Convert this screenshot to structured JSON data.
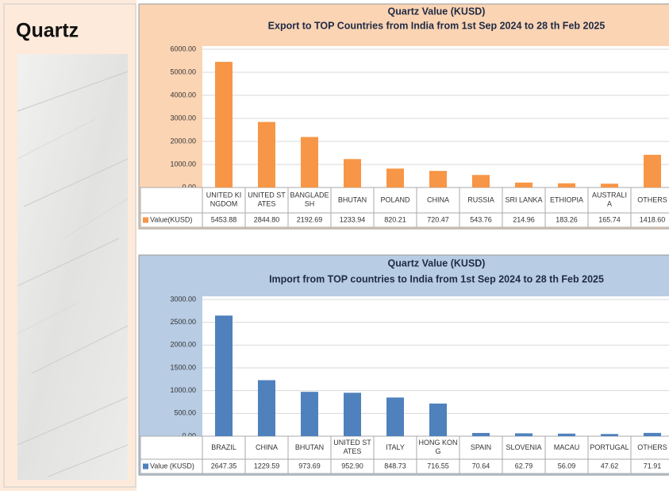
{
  "header": {
    "title": "Quartz"
  },
  "chart_data": [
    {
      "type": "bar",
      "title": "Quartz Value (KUSD)",
      "subtitle": "Export to TOP Countries from India from 1st Sep 2024 to 28 th Feb 2025",
      "categories": [
        "UNITED KINGDOM",
        "UNITED STATES",
        "BANGLADESH",
        "BHUTAN",
        "POLAND",
        "CHINA",
        "RUSSIA",
        "SRI LANKA",
        "ETHIOPIA",
        "AUSTRALIA",
        "OTHERS"
      ],
      "series": [
        {
          "name": "Value(KUSD)",
          "color": "#f79646",
          "values": [
            5453.88,
            2844.8,
            2192.69,
            1233.94,
            820.21,
            720.47,
            543.76,
            214.96,
            183.26,
            165.74,
            1418.6
          ],
          "value_labels": [
            "5453.88",
            "2844.80",
            "2192.69",
            "1233.94",
            "820.21",
            "720.47",
            "543.76",
            "214.96",
            "183.26",
            "165.74",
            "1418.60"
          ]
        }
      ],
      "ylim": [
        0,
        6000
      ],
      "yticks": [
        {
          "value": 0,
          "label": "0.00"
        },
        {
          "value": 1000,
          "label": "1000.00"
        },
        {
          "value": 2000,
          "label": "2000.00"
        },
        {
          "value": 3000,
          "label": "3000.00"
        },
        {
          "value": 4000,
          "label": "4000.00"
        },
        {
          "value": 5000,
          "label": "5000.00"
        },
        {
          "value": 6000,
          "label": "6000.00"
        }
      ],
      "grid": true
    },
    {
      "type": "bar",
      "title": "Quartz Value (KUSD)",
      "subtitle": "Import from TOP countries to India from 1st Sep 2024 to 28 th Feb 2025",
      "categories": [
        "BRAZIL",
        "CHINA",
        "BHUTAN",
        "UNITED STATES",
        "ITALY",
        "HONG KONG",
        "SPAIN",
        "SLOVENIA",
        "MACAU",
        "PORTUGAL",
        "OTHERS"
      ],
      "series": [
        {
          "name": "Value (KUSD)",
          "color": "#4f81bd",
          "values": [
            2647.35,
            1229.59,
            973.69,
            952.9,
            848.73,
            716.55,
            70.64,
            62.79,
            56.09,
            47.62,
            71.91
          ],
          "value_labels": [
            "2647.35",
            "1229.59",
            "973.69",
            "952.90",
            "848.73",
            "716.55",
            "70.64",
            "62.79",
            "56.09",
            "47.62",
            "71.91"
          ]
        }
      ],
      "ylim": [
        0,
        3000
      ],
      "yticks": [
        {
          "value": 0,
          "label": "0.00"
        },
        {
          "value": 500,
          "label": "500.00"
        },
        {
          "value": 1000,
          "label": "1000.00"
        },
        {
          "value": 1500,
          "label": "1500.00"
        },
        {
          "value": 2000,
          "label": "2000.00"
        },
        {
          "value": 2500,
          "label": "2500.00"
        },
        {
          "value": 3000,
          "label": "3000.00"
        }
      ],
      "grid": true
    }
  ]
}
